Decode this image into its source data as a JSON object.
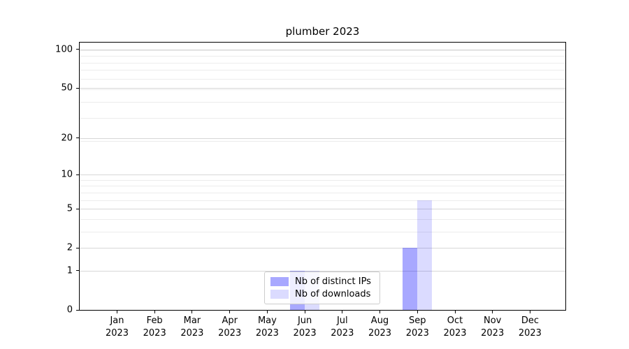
{
  "title": "plumber 2023",
  "chart_data": {
    "type": "bar",
    "title": "plumber 2023",
    "scale": "log1p",
    "categories": [
      "Jan",
      "Feb",
      "Mar",
      "Apr",
      "May",
      "Jun",
      "Jul",
      "Aug",
      "Sep",
      "Oct",
      "Nov",
      "Dec"
    ],
    "year_label": "2023",
    "series": [
      {
        "name": "Nb of distinct IPs",
        "fill": "rgba(0,0,255,0.34)",
        "hex": "#a9a9f7",
        "values": [
          0,
          0,
          0,
          0,
          0,
          1,
          0,
          0,
          2,
          0,
          0,
          0
        ]
      },
      {
        "name": "Nb of downloads",
        "fill": "rgba(0,0,255,0.14)",
        "hex": "#dcdcf9",
        "values": [
          0,
          0,
          0,
          0,
          0,
          1,
          0,
          0,
          6,
          0,
          0,
          0
        ]
      }
    ],
    "y_ticks": [
      0,
      1,
      2,
      5,
      10,
      20,
      50,
      100
    ],
    "ylim": [
      0,
      113
    ],
    "grid": {
      "orientation": "horizontal",
      "major_color": "#d7d7d7",
      "minor_color": "#ececec"
    },
    "legend": {
      "position": "bottom-center",
      "items": [
        "Nb of distinct IPs",
        "Nb of downloads"
      ]
    }
  }
}
